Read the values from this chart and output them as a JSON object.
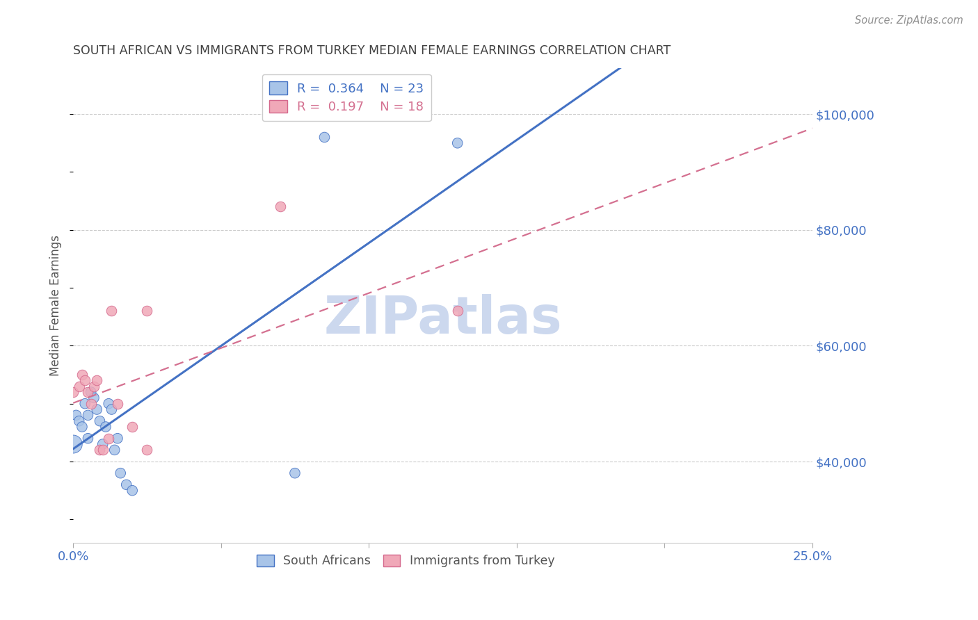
{
  "title": "SOUTH AFRICAN VS IMMIGRANTS FROM TURKEY MEDIAN FEMALE EARNINGS CORRELATION CHART",
  "source": "Source: ZipAtlas.com",
  "ylabel": "Median Female Earnings",
  "ytick_values": [
    40000,
    60000,
    80000,
    100000
  ],
  "watermark": "ZIPatlas",
  "sa_x": [
    0.0,
    0.001,
    0.002,
    0.003,
    0.004,
    0.005,
    0.005,
    0.006,
    0.007,
    0.008,
    0.009,
    0.01,
    0.011,
    0.012,
    0.013,
    0.014,
    0.015,
    0.016,
    0.018,
    0.02,
    0.075,
    0.085,
    0.13
  ],
  "sa_y": [
    43000,
    48000,
    47000,
    46000,
    50000,
    48000,
    44000,
    52000,
    51000,
    49000,
    47000,
    43000,
    46000,
    50000,
    49000,
    42000,
    44000,
    38000,
    36000,
    35000,
    38000,
    96000,
    95000
  ],
  "sa_big_idx": 0,
  "tr_x": [
    0.0,
    0.002,
    0.003,
    0.004,
    0.005,
    0.006,
    0.007,
    0.008,
    0.009,
    0.01,
    0.012,
    0.013,
    0.015,
    0.02,
    0.025,
    0.025,
    0.07,
    0.13
  ],
  "tr_y": [
    52000,
    53000,
    55000,
    54000,
    52000,
    50000,
    53000,
    54000,
    42000,
    42000,
    44000,
    66000,
    50000,
    46000,
    66000,
    42000,
    84000,
    66000
  ],
  "sa_color": "#a8c4e8",
  "tr_color": "#f0a8b8",
  "sa_edge_color": "#4472c4",
  "tr_edge_color": "#d4688c",
  "sa_line_color": "#4472c4",
  "tr_line_color": "#d47090",
  "title_color": "#404040",
  "source_color": "#909090",
  "tick_label_color": "#4472c4",
  "grid_color": "#cccccc",
  "watermark_color": "#ccd8ee",
  "xmin": 0.0,
  "xmax": 0.25,
  "ymin": 26000,
  "ymax": 108000,
  "sa_r": 0.364,
  "tr_r": 0.197,
  "sa_n": 23,
  "tr_n": 18,
  "sa_line_intercept": 43000,
  "sa_line_slope": 120000,
  "tr_line_intercept": 50000,
  "tr_line_slope": 90000
}
